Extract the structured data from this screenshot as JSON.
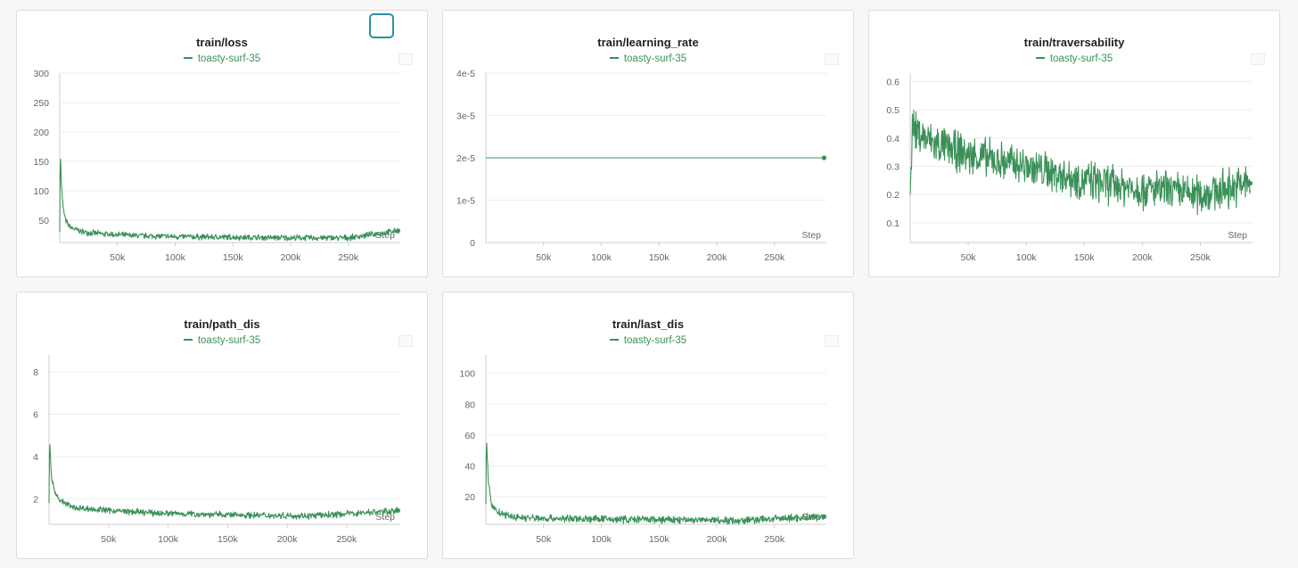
{
  "theme": {
    "line_color": "#3a9158",
    "grid_color": "#eeeeee",
    "axis_color": "#cfcfcf"
  },
  "charts": [
    {
      "title": "train/loss",
      "legend": "toasty-surf-35",
      "xlabel": "Step"
    },
    {
      "title": "train/learning_rate",
      "legend": "toasty-surf-35",
      "xlabel": "Step"
    },
    {
      "title": "train/traversability",
      "legend": "toasty-surf-35",
      "xlabel": "Step"
    },
    {
      "title": "train/path_dis",
      "legend": "toasty-surf-35",
      "xlabel": "Step"
    },
    {
      "title": "train/last_dis",
      "legend": "toasty-surf-35",
      "xlabel": "Step"
    }
  ],
  "chart_data": [
    {
      "type": "line",
      "title": "train/loss",
      "xlabel": "Step",
      "ylabel": "",
      "xlim": [
        0,
        295000
      ],
      "ylim": [
        12,
        300
      ],
      "xticks": [
        50000,
        100000,
        150000,
        200000,
        250000
      ],
      "xtick_labels": [
        "50k",
        "100k",
        "150k",
        "200k",
        "250k"
      ],
      "yticks": [
        50,
        100,
        150,
        200,
        250,
        300
      ],
      "ytick_labels": [
        "50",
        "100",
        "150",
        "200",
        "250",
        "300"
      ],
      "grid": true,
      "legend_position": "top-center",
      "series": [
        {
          "name": "toasty-surf-35",
          "x": [
            0,
            500,
            1500,
            3000,
            5000,
            8000,
            12000,
            20000,
            35000,
            60000,
            100000,
            150000,
            200000,
            250000,
            293000
          ],
          "y": [
            30,
            170,
            110,
            70,
            50,
            40,
            35,
            30,
            27,
            24,
            22,
            21,
            20,
            20,
            32
          ],
          "noise": 5
        }
      ]
    },
    {
      "type": "line",
      "title": "train/learning_rate",
      "xlabel": "Step",
      "ylabel": "",
      "xlim": [
        0,
        295000
      ],
      "ylim": [
        0,
        4e-05
      ],
      "xticks": [
        50000,
        100000,
        150000,
        200000,
        250000
      ],
      "xtick_labels": [
        "50k",
        "100k",
        "150k",
        "200k",
        "250k"
      ],
      "yticks": [
        0,
        1e-05,
        2e-05,
        3e-05,
        4e-05
      ],
      "ytick_labels": [
        "0",
        "1e-5",
        "2e-5",
        "3e-5",
        "4e-5"
      ],
      "grid": true,
      "legend_position": "top-center",
      "series": [
        {
          "name": "toasty-surf-35",
          "x": [
            0,
            293000
          ],
          "y": [
            2e-05,
            2e-05
          ],
          "noise": 0
        }
      ]
    },
    {
      "type": "line",
      "title": "train/traversability",
      "xlabel": "Step",
      "ylabel": "",
      "xlim": [
        0,
        295000
      ],
      "ylim": [
        0.03,
        0.63
      ],
      "xticks": [
        50000,
        100000,
        150000,
        200000,
        250000
      ],
      "xtick_labels": [
        "50k",
        "100k",
        "150k",
        "200k",
        "250k"
      ],
      "yticks": [
        0.1,
        0.2,
        0.3,
        0.4,
        0.5,
        0.6
      ],
      "ytick_labels": [
        "0.1",
        "0.2",
        "0.3",
        "0.4",
        "0.5",
        "0.6"
      ],
      "grid": true,
      "legend_position": "top-center",
      "series": [
        {
          "name": "toasty-surf-35",
          "x": [
            0,
            2000,
            5000,
            20000,
            50000,
            100000,
            150000,
            200000,
            250000,
            293000
          ],
          "y": [
            0.2,
            0.45,
            0.42,
            0.38,
            0.34,
            0.3,
            0.25,
            0.22,
            0.2,
            0.24
          ],
          "noise": 0.07
        }
      ]
    },
    {
      "type": "line",
      "title": "train/path_dis",
      "xlabel": "Step",
      "ylabel": "",
      "xlim": [
        0,
        295000
      ],
      "ylim": [
        0.8,
        8.8
      ],
      "xticks": [
        50000,
        100000,
        150000,
        200000,
        250000
      ],
      "xtick_labels": [
        "50k",
        "100k",
        "150k",
        "200k",
        "250k"
      ],
      "yticks": [
        2,
        4,
        6,
        8
      ],
      "ytick_labels": [
        "2",
        "4",
        "6",
        "8"
      ],
      "grid": true,
      "legend_position": "top-center",
      "series": [
        {
          "name": "toasty-surf-35",
          "x": [
            0,
            500,
            2000,
            5000,
            10000,
            20000,
            40000,
            80000,
            150000,
            220000,
            293000
          ],
          "y": [
            1.8,
            4.9,
            3.0,
            2.3,
            1.9,
            1.6,
            1.5,
            1.35,
            1.25,
            1.2,
            1.45
          ],
          "noise": 0.15
        }
      ]
    },
    {
      "type": "line",
      "title": "train/last_dis",
      "xlabel": "Step",
      "ylabel": "",
      "xlim": [
        0,
        295000
      ],
      "ylim": [
        2,
        112
      ],
      "xticks": [
        50000,
        100000,
        150000,
        200000,
        250000
      ],
      "xtick_labels": [
        "50k",
        "100k",
        "150k",
        "200k",
        "250k"
      ],
      "yticks": [
        20,
        40,
        60,
        80,
        100
      ],
      "ytick_labels": [
        "20",
        "40",
        "60",
        "80",
        "100"
      ],
      "grid": true,
      "legend_position": "top-center",
      "series": [
        {
          "name": "toasty-surf-35",
          "x": [
            0,
            500,
            2000,
            5000,
            10000,
            20000,
            40000,
            80000,
            150000,
            220000,
            293000
          ],
          "y": [
            15,
            60,
            30,
            15,
            10,
            7,
            6,
            5.5,
            5,
            4.5,
            7
          ],
          "noise": 2.5
        }
      ]
    }
  ]
}
